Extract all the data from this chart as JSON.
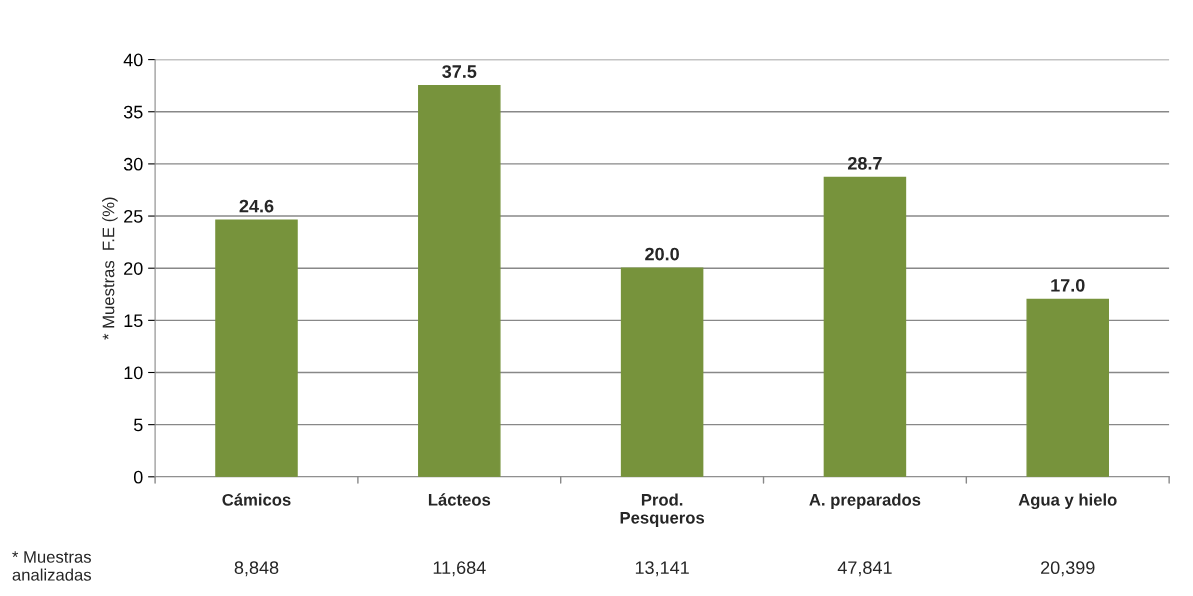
{
  "chart_data": {
    "type": "bar",
    "ylabel": "* Muestras  F.E (%)",
    "categories": [
      "Cámicos",
      "Lácteos",
      "Prod.\nPesqueros",
      "A. preparados",
      "Agua y hielo"
    ],
    "values": [
      24.6,
      37.5,
      20.0,
      28.7,
      17.0
    ],
    "value_labels": [
      "24.6",
      "37.5",
      "20.0",
      "28.7",
      "17.0"
    ],
    "color": "#77933c",
    "ylim": [
      0,
      40
    ],
    "yticks": [
      0,
      5,
      10,
      15,
      20,
      25,
      30,
      35,
      40
    ],
    "grid": "y",
    "annotations": [
      "* Muestras\nanalizadas",
      "8,848",
      "11,684",
      "13,141",
      "47,841",
      "20,399"
    ]
  }
}
